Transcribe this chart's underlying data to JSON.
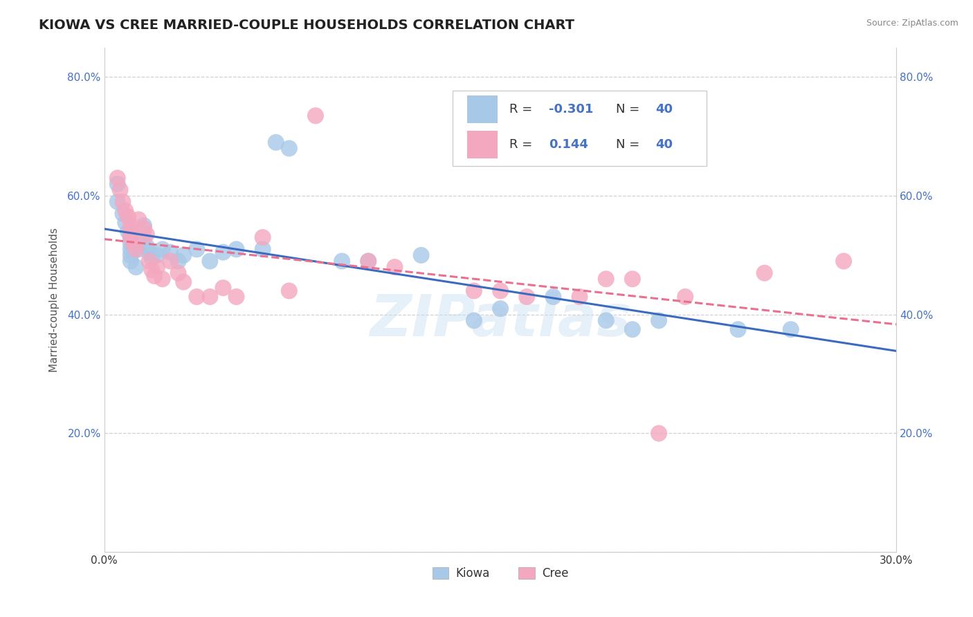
{
  "title": "KIOWA VS CREE MARRIED-COUPLE HOUSEHOLDS CORRELATION CHART",
  "source": "Source: ZipAtlas.com",
  "ylabel": "Married-couple Households",
  "xlim": [
    0.0,
    0.3
  ],
  "ylim": [
    0.0,
    0.85
  ],
  "x_ticks": [
    0.0,
    0.05,
    0.1,
    0.15,
    0.2,
    0.25,
    0.3
  ],
  "y_ticks": [
    0.0,
    0.2,
    0.4,
    0.6,
    0.8
  ],
  "kiowa_color": "#a8c8e8",
  "cree_color": "#f4a8c0",
  "kiowa_line_color": "#3a6bbf",
  "cree_line_color": "#e87090",
  "R_kiowa": -0.301,
  "N_kiowa": 40,
  "R_cree": 0.144,
  "N_cree": 40,
  "kiowa_points": [
    [
      0.005,
      0.62
    ],
    [
      0.005,
      0.59
    ],
    [
      0.007,
      0.57
    ],
    [
      0.008,
      0.555
    ],
    [
      0.009,
      0.54
    ],
    [
      0.01,
      0.53
    ],
    [
      0.01,
      0.52
    ],
    [
      0.01,
      0.51
    ],
    [
      0.01,
      0.5
    ],
    [
      0.01,
      0.49
    ],
    [
      0.012,
      0.48
    ],
    [
      0.013,
      0.51
    ],
    [
      0.015,
      0.55
    ],
    [
      0.015,
      0.53
    ],
    [
      0.016,
      0.515
    ],
    [
      0.017,
      0.505
    ],
    [
      0.018,
      0.495
    ],
    [
      0.02,
      0.5
    ],
    [
      0.022,
      0.51
    ],
    [
      0.025,
      0.505
    ],
    [
      0.028,
      0.49
    ],
    [
      0.03,
      0.5
    ],
    [
      0.035,
      0.51
    ],
    [
      0.04,
      0.49
    ],
    [
      0.045,
      0.505
    ],
    [
      0.05,
      0.51
    ],
    [
      0.06,
      0.51
    ],
    [
      0.065,
      0.69
    ],
    [
      0.07,
      0.68
    ],
    [
      0.09,
      0.49
    ],
    [
      0.1,
      0.49
    ],
    [
      0.12,
      0.5
    ],
    [
      0.14,
      0.39
    ],
    [
      0.15,
      0.41
    ],
    [
      0.17,
      0.43
    ],
    [
      0.19,
      0.39
    ],
    [
      0.2,
      0.375
    ],
    [
      0.21,
      0.39
    ],
    [
      0.24,
      0.375
    ],
    [
      0.26,
      0.375
    ]
  ],
  "cree_points": [
    [
      0.005,
      0.63
    ],
    [
      0.006,
      0.61
    ],
    [
      0.007,
      0.59
    ],
    [
      0.008,
      0.575
    ],
    [
      0.009,
      0.565
    ],
    [
      0.01,
      0.55
    ],
    [
      0.01,
      0.54
    ],
    [
      0.01,
      0.53
    ],
    [
      0.011,
      0.52
    ],
    [
      0.012,
      0.51
    ],
    [
      0.013,
      0.56
    ],
    [
      0.015,
      0.545
    ],
    [
      0.016,
      0.535
    ],
    [
      0.017,
      0.49
    ],
    [
      0.018,
      0.475
    ],
    [
      0.019,
      0.465
    ],
    [
      0.02,
      0.48
    ],
    [
      0.022,
      0.46
    ],
    [
      0.025,
      0.49
    ],
    [
      0.028,
      0.47
    ],
    [
      0.03,
      0.455
    ],
    [
      0.035,
      0.43
    ],
    [
      0.04,
      0.43
    ],
    [
      0.045,
      0.445
    ],
    [
      0.05,
      0.43
    ],
    [
      0.06,
      0.53
    ],
    [
      0.07,
      0.44
    ],
    [
      0.08,
      0.735
    ],
    [
      0.1,
      0.49
    ],
    [
      0.11,
      0.48
    ],
    [
      0.14,
      0.44
    ],
    [
      0.15,
      0.44
    ],
    [
      0.16,
      0.43
    ],
    [
      0.18,
      0.43
    ],
    [
      0.19,
      0.46
    ],
    [
      0.2,
      0.46
    ],
    [
      0.21,
      0.2
    ],
    [
      0.22,
      0.43
    ],
    [
      0.25,
      0.47
    ],
    [
      0.28,
      0.49
    ]
  ],
  "background_color": "#ffffff",
  "grid_color": "#d0d0d0",
  "watermark": "ZIPatlas"
}
